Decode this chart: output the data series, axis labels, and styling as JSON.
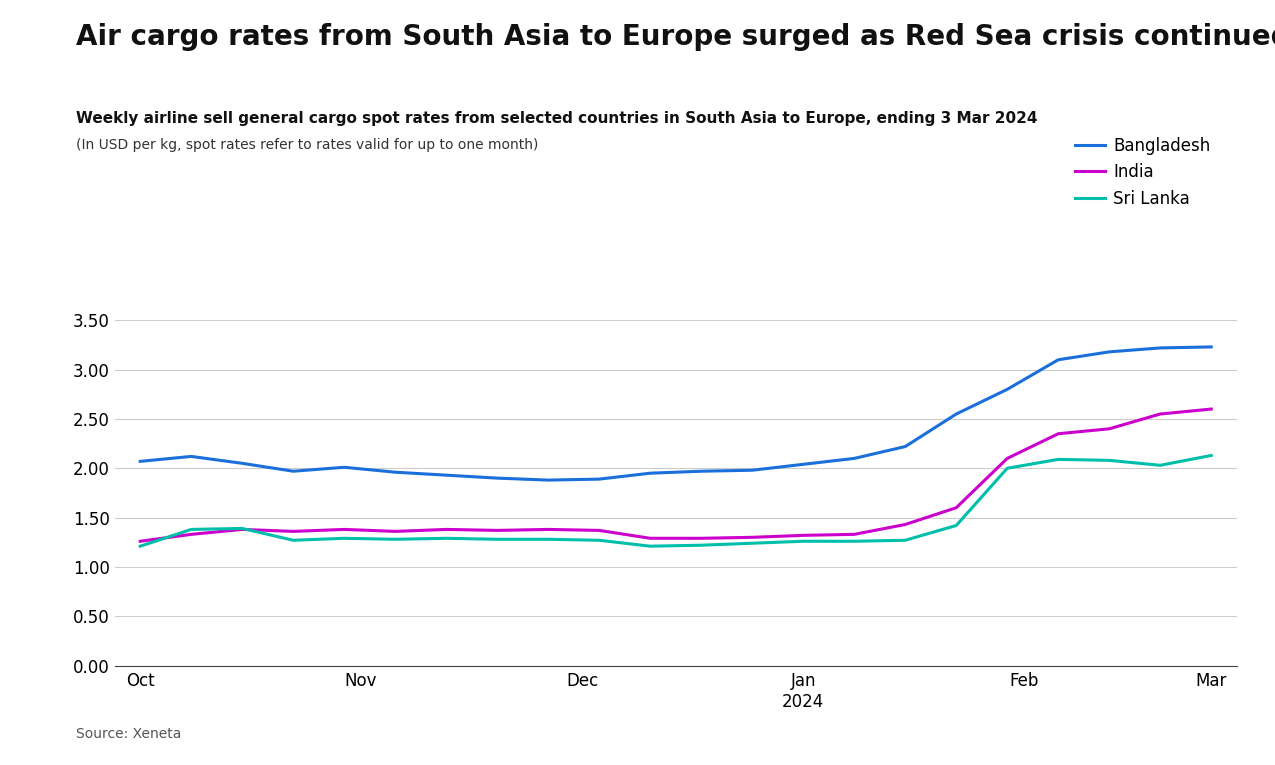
{
  "title": "Air cargo rates from South Asia to Europe surged as Red Sea crisis continued",
  "subtitle": "Weekly airline sell general cargo spot rates from selected countries in South Asia to Europe, ending 3 Mar 2024",
  "subtitle2": "(In USD per kg, spot rates refer to rates valid for up to one month)",
  "source": "Source: Xeneta",
  "background_color": "#ffffff",
  "legend": [
    "Bangladesh",
    "India",
    "Sri Lanka"
  ],
  "line_colors": [
    "#1a6fdb",
    "#cc00cc",
    "#00bfaa"
  ],
  "ylim": [
    0.0,
    3.8
  ],
  "yticks": [
    0.0,
    0.5,
    1.0,
    1.5,
    2.0,
    2.5,
    3.0,
    3.5
  ],
  "month_positions": [
    0,
    4.33,
    8.67,
    13.0,
    17.33,
    21.0
  ],
  "month_labels": [
    "Oct",
    "Nov",
    "Dec",
    "Jan\n2024",
    "Feb",
    "Mar"
  ],
  "bangladesh": [
    2.07,
    2.12,
    2.05,
    1.97,
    2.01,
    1.96,
    1.93,
    1.9,
    1.88,
    1.89,
    1.95,
    1.97,
    1.98,
    2.04,
    2.1,
    2.22,
    2.55,
    2.8,
    3.1,
    3.18,
    3.22,
    3.23
  ],
  "india": [
    1.26,
    1.33,
    1.38,
    1.36,
    1.38,
    1.36,
    1.38,
    1.37,
    1.38,
    1.37,
    1.29,
    1.29,
    1.3,
    1.32,
    1.33,
    1.43,
    1.6,
    2.1,
    2.35,
    2.4,
    2.55,
    2.6
  ],
  "srilanka": [
    1.21,
    1.38,
    1.39,
    1.27,
    1.29,
    1.28,
    1.29,
    1.28,
    1.28,
    1.27,
    1.21,
    1.22,
    1.24,
    1.26,
    1.26,
    1.27,
    1.42,
    2.0,
    2.09,
    2.08,
    2.03,
    2.13
  ],
  "title_fontsize": 20,
  "subtitle_fontsize": 11,
  "axis_tick_fontsize": 12,
  "legend_fontsize": 12
}
